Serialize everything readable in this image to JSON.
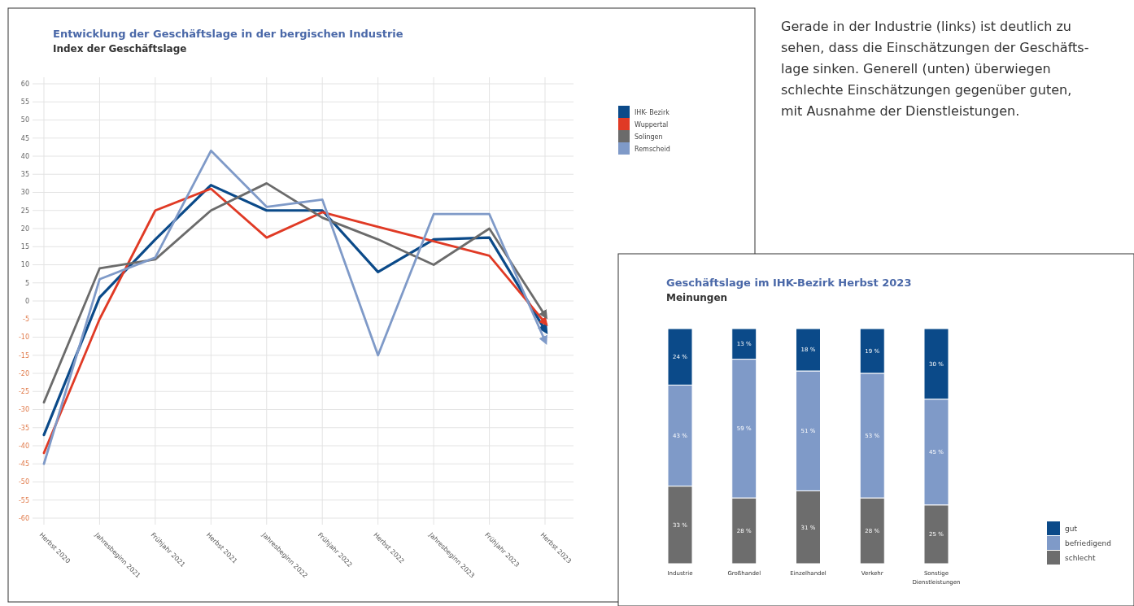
{
  "chart_data": [
    {
      "type": "line",
      "title": "Entwicklung der Geschäftslage in der bergischen Industrie",
      "subtitle": "Index der Geschäftslage",
      "categories": [
        "Herbst 2020",
        "Jahresbeginn 2021",
        "Frühjahr 2021",
        "Herbst 2021",
        "Jahresbeginn 2022",
        "Frühjahr 2022",
        "Herbst 2022",
        "Jahresbeginn 2023",
        "Frühjahr 2023",
        "Herbst 2023"
      ],
      "series": [
        {
          "name": "IHK- Bezirk",
          "color": "#0b4a89",
          "values": [
            -37,
            1,
            17,
            32,
            25,
            25,
            8,
            17,
            17.5,
            -8
          ]
        },
        {
          "name": "Wuppertal",
          "color": "#e03a25",
          "values": [
            -42,
            -5,
            25,
            31,
            17.5,
            24.5,
            20.5,
            16.5,
            12.5,
            -6
          ]
        },
        {
          "name": "Solingen",
          "color": "#6b6b6b",
          "values": [
            -28,
            9,
            11.5,
            25,
            32.5,
            23,
            17,
            10,
            20,
            -4
          ]
        },
        {
          "name": "Remscheid",
          "color": "#7f9ac8",
          "values": [
            -45,
            6,
            12,
            41.5,
            26,
            28,
            -15,
            24,
            24,
            -11
          ]
        }
      ],
      "ylim": [
        -60,
        60
      ],
      "yticks": [
        -60,
        -55,
        -50,
        -45,
        -40,
        -35,
        -30,
        -25,
        -20,
        -15,
        -10,
        -5,
        0,
        5,
        10,
        15,
        20,
        25,
        30,
        35,
        40,
        45,
        50,
        55,
        60
      ],
      "grid": true,
      "legend": "top right",
      "line_style": "solid"
    },
    {
      "type": "other",
      "annotations": [
        "Gerade in der Industrie (links) ist deutlich zu",
        "sehen, dass die Einschätzungen der Geschäfts-",
        "lage sinken. Generell (unten) überwiegen",
        "schlechte Einschätzungen gegenüber guten,",
        "mit Ausnahme der Dienstleistungen."
      ]
    },
    {
      "type": "bar",
      "title": "Geschäftslage im IHK-Bezirk Herbst 2023",
      "subtitle": "Meinungen",
      "stacked": true,
      "categories": [
        "Industrie",
        "Großhandel",
        "Einzelhandel",
        "Verkehr",
        "Sonstige Dienstleistungen"
      ],
      "series": [
        {
          "name": "schlecht",
          "color": "#6d6d6d",
          "values": [
            33,
            28,
            31,
            28,
            25
          ],
          "value_labels": [
            "33 %",
            "28 %",
            "31 %",
            "28 %",
            "25 %"
          ]
        },
        {
          "name": "befriedigend",
          "color": "#7f9ac8",
          "values": [
            43,
            59,
            51,
            53,
            45
          ],
          "value_labels": [
            "43 %",
            "59 %",
            "51 %",
            "53 %",
            "45 %"
          ]
        },
        {
          "name": "gut",
          "color": "#0b4a89",
          "values": [
            24,
            13,
            18,
            19,
            30
          ],
          "value_labels": [
            "24 %",
            "13 %",
            "18 %",
            "19 %",
            "30 %"
          ]
        }
      ],
      "ylim": [
        0,
        100
      ],
      "tick_labels": "x",
      "legend": "bottom right"
    }
  ]
}
